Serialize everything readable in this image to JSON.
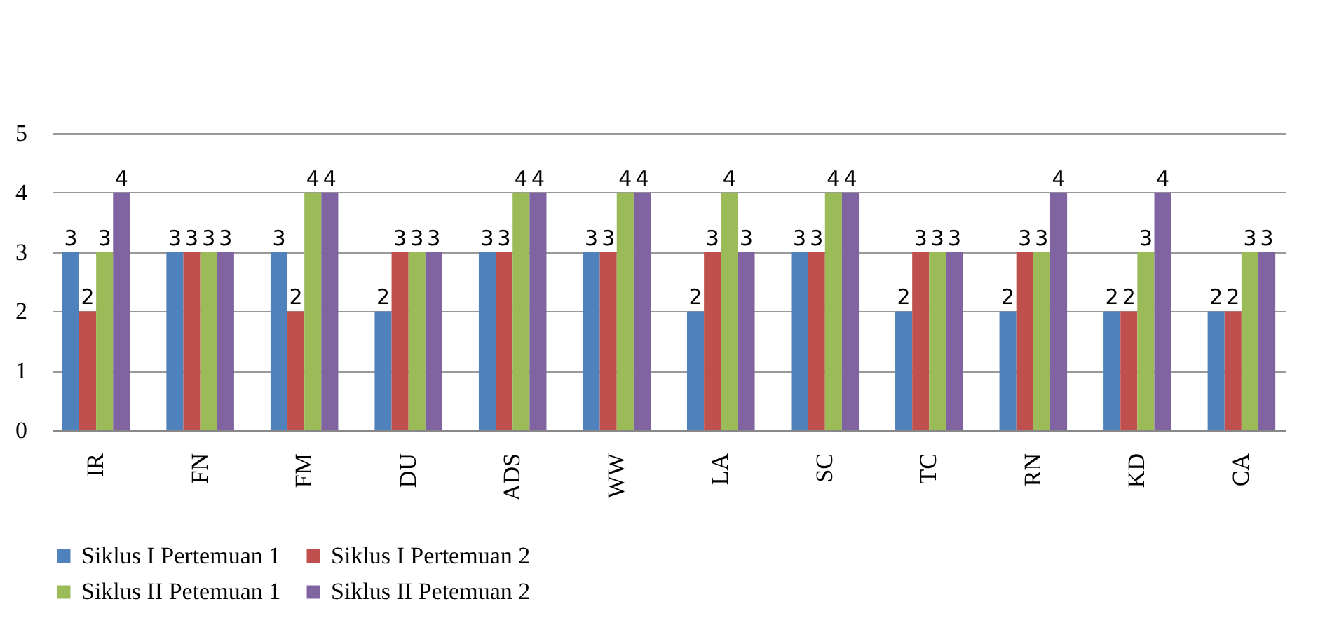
{
  "chart_data": {
    "type": "bar",
    "categories": [
      "IR",
      "FN",
      "FM",
      "DU",
      "ADS",
      "WW",
      "LA",
      "SC",
      "TC",
      "RN",
      "KD",
      "CA"
    ],
    "series": [
      {
        "name": "Siklus I Pertemuan 1",
        "color": "#4f81bd",
        "values": [
          3,
          3,
          3,
          2,
          3,
          3,
          2,
          3,
          2,
          2,
          2,
          2
        ]
      },
      {
        "name": "Siklus I Pertemuan 2",
        "color": "#c0504d",
        "values": [
          2,
          3,
          2,
          3,
          3,
          3,
          3,
          3,
          3,
          3,
          2,
          2
        ]
      },
      {
        "name": "Siklus II Petemuan 1",
        "color": "#9bbb59",
        "values": [
          3,
          3,
          4,
          3,
          4,
          4,
          4,
          4,
          3,
          3,
          3,
          3
        ]
      },
      {
        "name": "Siklus II Petemuan 2",
        "color": "#8064a2",
        "values": [
          4,
          3,
          4,
          3,
          4,
          4,
          3,
          4,
          3,
          4,
          4,
          3
        ]
      }
    ],
    "ylim": [
      0,
      5
    ],
    "yticks": [
      0,
      1,
      2,
      3,
      4,
      5
    ],
    "grid": "y",
    "legend": "bottom",
    "data_labels": true
  }
}
